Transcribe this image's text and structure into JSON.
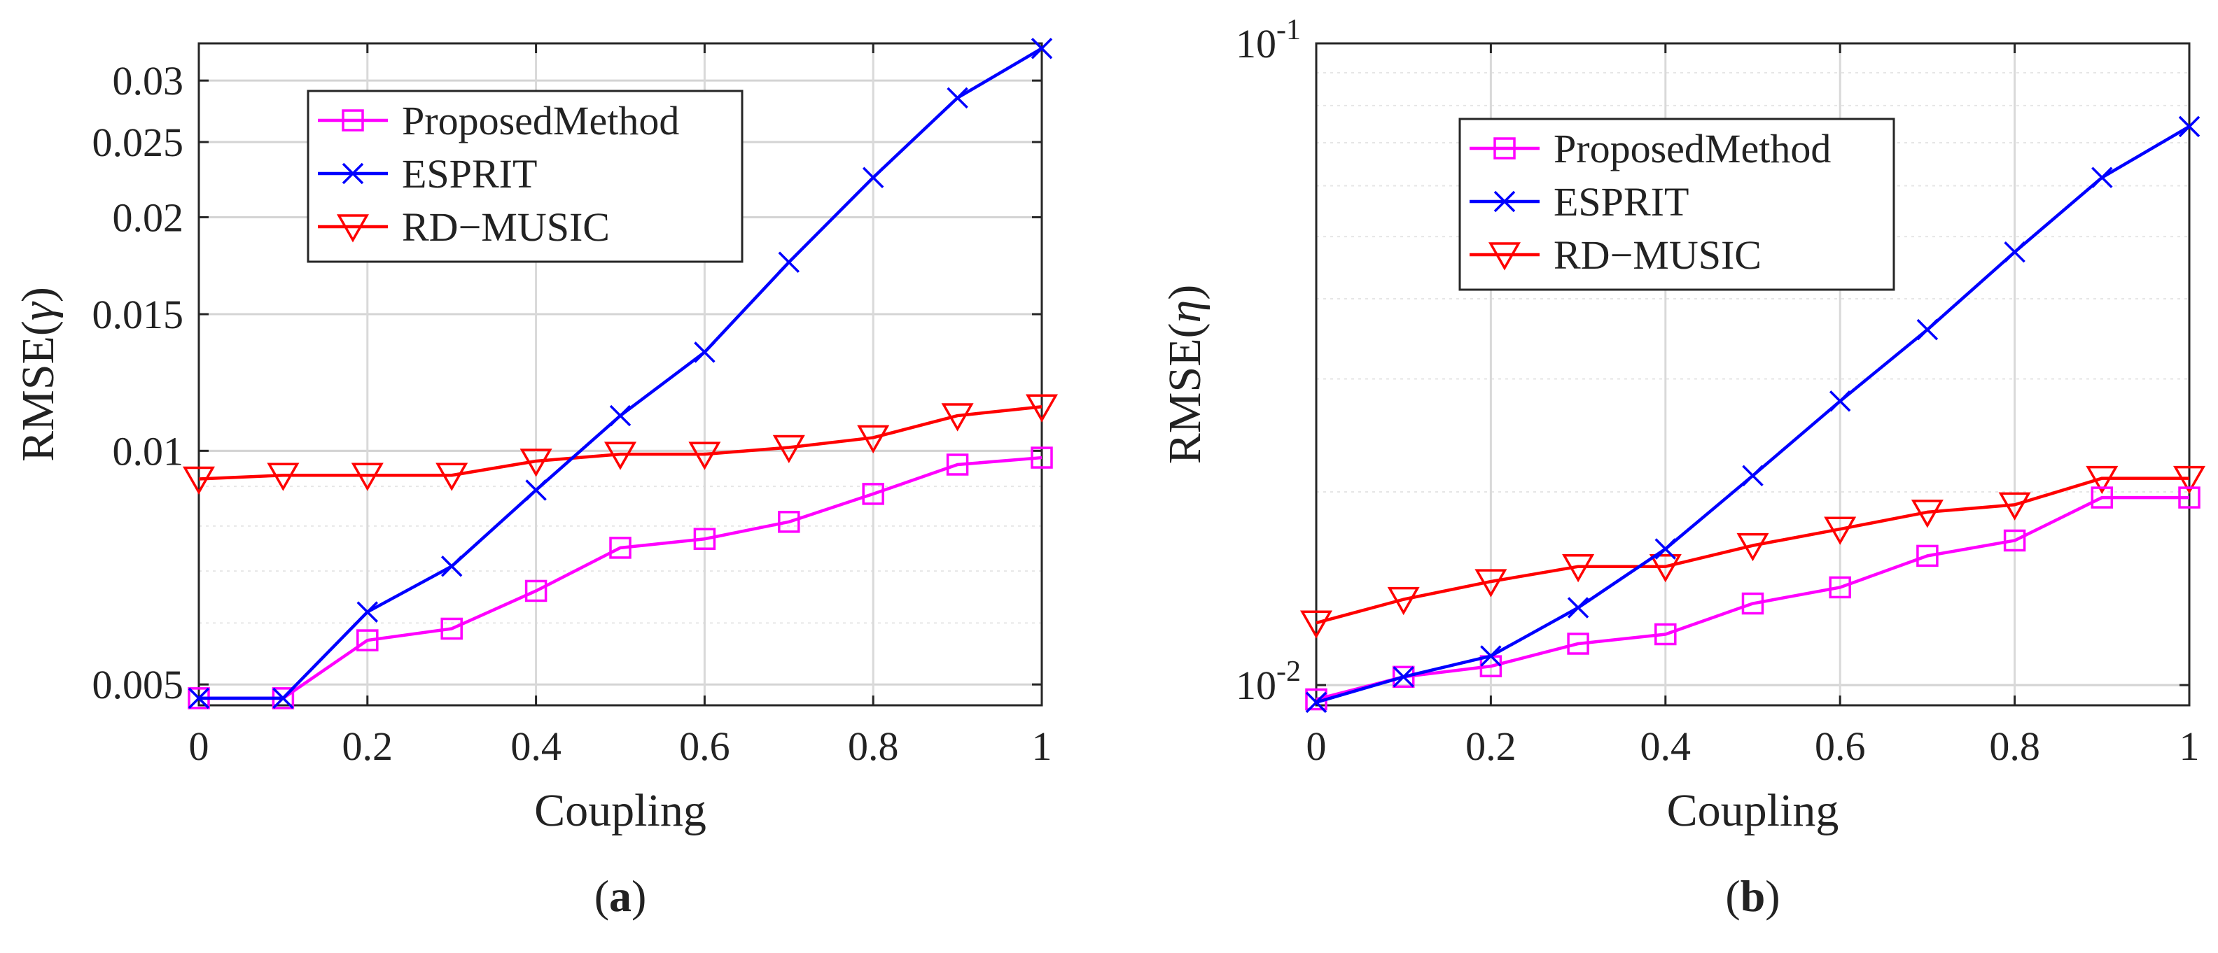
{
  "chart_data": [
    {
      "panel": "(a)",
      "panel_letter": "a",
      "type": "line",
      "yscale": "log",
      "xlabel": "Coupling",
      "ylabel_prefix": "RMSE(",
      "ylabel_symbol": "γ",
      "ylabel_suffix": ")",
      "xlim": [
        0,
        1
      ],
      "ylim": [
        0.0047,
        0.0335
      ],
      "xticks": [
        0,
        0.2,
        0.4,
        0.6,
        0.8,
        1
      ],
      "xtick_labels": [
        "0",
        "0.2",
        "0.4",
        "0.6",
        "0.8",
        "1"
      ],
      "yticks": [
        0.005,
        0.01,
        0.015,
        0.02,
        0.025,
        0.03
      ],
      "ytick_labels": [
        "0.005",
        "0.01",
        "0.015",
        "0.02",
        "0.025",
        "0.03"
      ],
      "grid": true,
      "legend_position": "top-left",
      "x": [
        0,
        0.1,
        0.2,
        0.3,
        0.4,
        0.5,
        0.6,
        0.7,
        0.8,
        0.9,
        1
      ],
      "series": [
        {
          "name": "ProposedMethod",
          "marker": "square",
          "color": "#ff00ff",
          "values": [
            0.0048,
            0.0048,
            0.0057,
            0.0059,
            0.0066,
            0.0075,
            0.0077,
            0.0081,
            0.0088,
            0.0096,
            0.0098
          ]
        },
        {
          "name": "ESPRIT",
          "marker": "x",
          "color": "#0000ff",
          "values": [
            0.0048,
            0.0048,
            0.0062,
            0.0071,
            0.0089,
            0.0111,
            0.0134,
            0.0175,
            0.0225,
            0.0285,
            0.033
          ]
        },
        {
          "name": "RD−MUSIC",
          "marker": "triangle-down",
          "color": "#ff0000",
          "values": [
            0.0092,
            0.0093,
            0.0093,
            0.0093,
            0.0097,
            0.0099,
            0.0099,
            0.0101,
            0.0104,
            0.0111,
            0.0114
          ]
        }
      ]
    },
    {
      "panel": "(b)",
      "panel_letter": "b",
      "type": "line",
      "yscale": "log",
      "xlabel": "Coupling",
      "ylabel_prefix": "RMSE(",
      "ylabel_symbol": "η",
      "ylabel_suffix": ")",
      "xlim": [
        0,
        1
      ],
      "ylim": [
        0.0093,
        0.1
      ],
      "xticks": [
        0,
        0.2,
        0.4,
        0.6,
        0.8,
        1
      ],
      "xtick_labels": [
        "0",
        "0.2",
        "0.4",
        "0.6",
        "0.8",
        "1"
      ],
      "yticks": [
        0.01,
        0.1
      ],
      "ytick_labels": [
        {
          "base": "10",
          "exp": "-2"
        },
        {
          "base": "10",
          "exp": "-1"
        }
      ],
      "grid": true,
      "legend_position": "top-left",
      "x": [
        0,
        0.1,
        0.2,
        0.3,
        0.4,
        0.5,
        0.6,
        0.7,
        0.8,
        0.9,
        1
      ],
      "series": [
        {
          "name": "ProposedMethod",
          "marker": "square",
          "color": "#ff00ff",
          "values": [
            0.0095,
            0.0103,
            0.0107,
            0.0116,
            0.012,
            0.0134,
            0.0142,
            0.0159,
            0.0168,
            0.0196,
            0.0196
          ]
        },
        {
          "name": "ESPRIT",
          "marker": "x",
          "color": "#0000ff",
          "values": [
            0.0094,
            0.0103,
            0.0111,
            0.0132,
            0.0163,
            0.0212,
            0.0277,
            0.0358,
            0.0473,
            0.0618,
            0.0742
          ]
        },
        {
          "name": "RD−MUSIC",
          "marker": "triangle-down",
          "color": "#ff0000",
          "values": [
            0.0125,
            0.0136,
            0.0145,
            0.0153,
            0.0153,
            0.0165,
            0.0175,
            0.0186,
            0.0191,
            0.021,
            0.021
          ]
        }
      ]
    }
  ]
}
